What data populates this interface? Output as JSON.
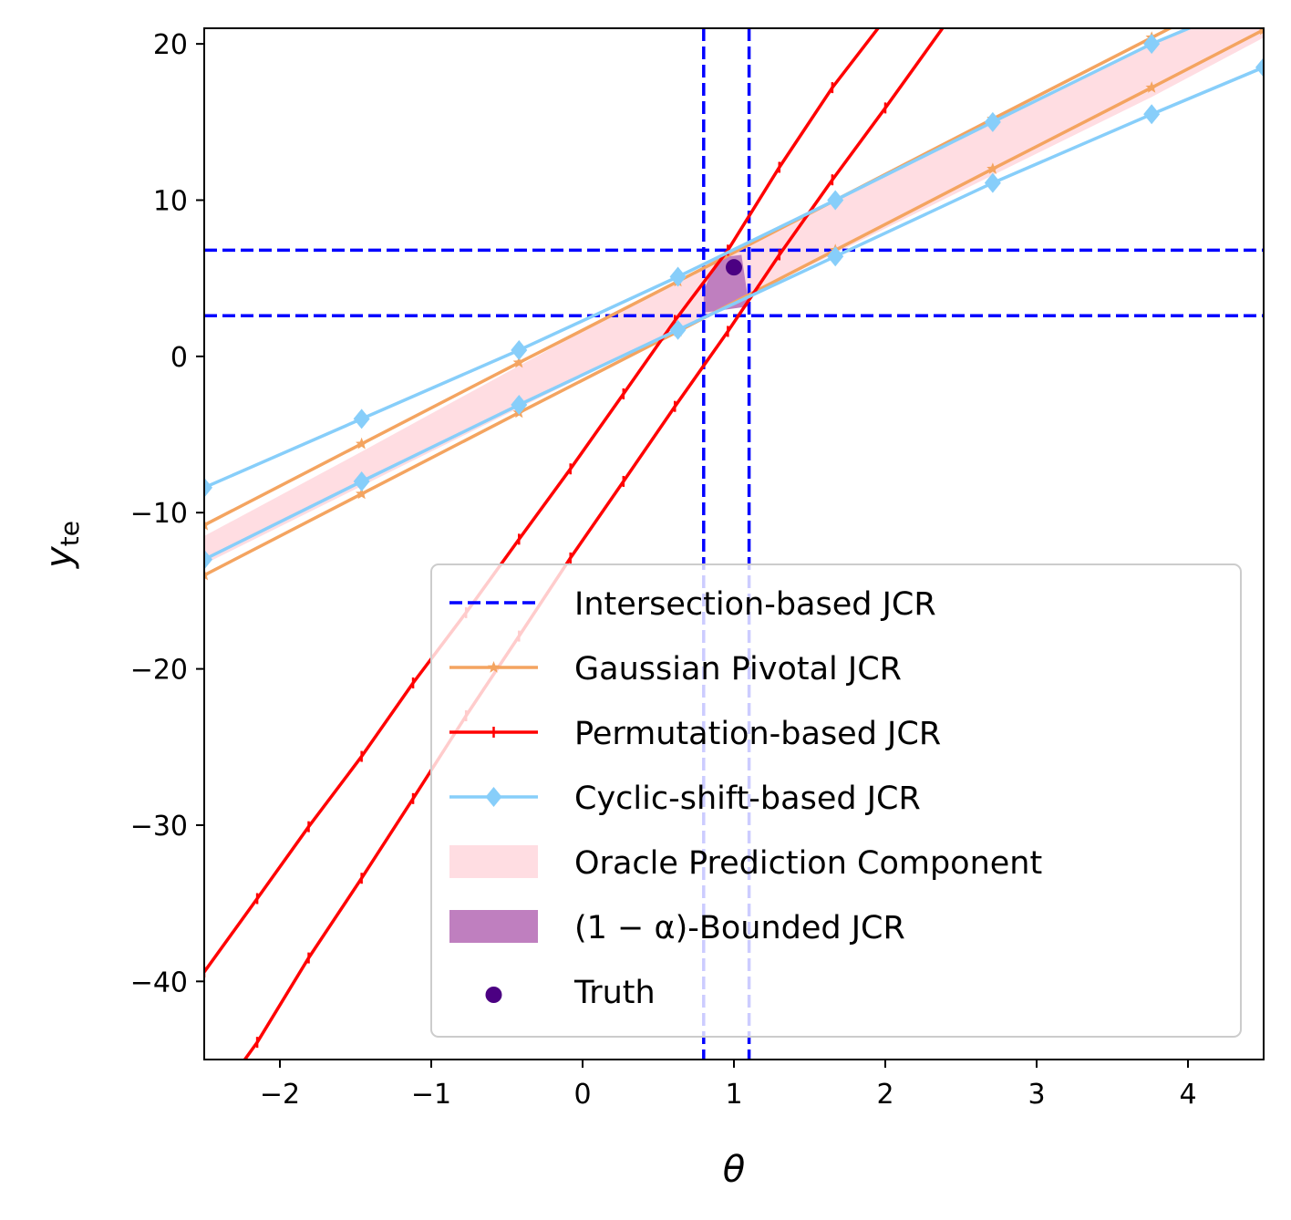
{
  "chart_data": {
    "type": "line",
    "xlabel": "θ",
    "ylabel_main": "y",
    "ylabel_sub": "te",
    "xlim": [
      -2.5,
      4.5
    ],
    "ylim": [
      -45,
      21
    ],
    "x_ticks": [
      {
        "value": -2,
        "label": "−2"
      },
      {
        "value": -1,
        "label": "−1"
      },
      {
        "value": 0,
        "label": "0"
      },
      {
        "value": 1,
        "label": "1"
      },
      {
        "value": 2,
        "label": "2"
      },
      {
        "value": 3,
        "label": "3"
      },
      {
        "value": 4,
        "label": "4"
      }
    ],
    "y_ticks": [
      {
        "value": 20,
        "label": "20"
      },
      {
        "value": 10,
        "label": "10"
      },
      {
        "value": 0,
        "label": "0"
      },
      {
        "value": -10,
        "label": "−10"
      },
      {
        "value": -20,
        "label": "−20"
      },
      {
        "value": -30,
        "label": "−30"
      },
      {
        "value": -40,
        "label": "−40"
      }
    ],
    "grid": false,
    "legend_position": "lower-right",
    "legend": [
      {
        "key": "intersection",
        "label": "Intersection-based JCR"
      },
      {
        "key": "gaussian",
        "label": "Gaussian Pivotal JCR"
      },
      {
        "key": "permutation",
        "label": "Permutation-based JCR"
      },
      {
        "key": "cyclic",
        "label": "Cyclic-shift-based JCR"
      },
      {
        "key": "oracle",
        "label": "Oracle Prediction Component"
      },
      {
        "key": "bounded",
        "label": "(1 − α)-Bounded JCR"
      },
      {
        "key": "truth",
        "label": "Truth"
      }
    ],
    "series": [
      {
        "key": "gaussian",
        "color": "#F4A460",
        "marker": "star",
        "lines": [
          {
            "x": [
              -2.5,
              -1.46,
              -0.42,
              0.63,
              1.67,
              2.71,
              3.76,
              4.5
            ],
            "y": [
              -10.8,
              -5.6,
              -0.4,
              4.8,
              10.0,
              15.2,
              20.4,
              24.1
            ]
          },
          {
            "x": [
              -2.5,
              -1.46,
              -0.42,
              0.63,
              1.67,
              2.71,
              3.76,
              4.5
            ],
            "y": [
              -14.0,
              -8.8,
              -3.6,
              1.6,
              6.8,
              12.0,
              17.2,
              20.9
            ]
          }
        ]
      },
      {
        "key": "permutation",
        "color": "#FF0000",
        "marker": "tick",
        "lines": [
          {
            "x": [
              -2.5,
              -2.15,
              -1.81,
              -1.46,
              -1.12,
              -0.77,
              -0.42,
              -0.08,
              0.27,
              0.61,
              0.96,
              1.3,
              1.65,
              2.0,
              2.4
            ],
            "y": [
              -39.4,
              -34.7,
              -30.1,
              -25.6,
              -20.9,
              -16.4,
              -11.7,
              -7.2,
              -2.4,
              2.3,
              6.8,
              12.1,
              17.2,
              21.6,
              27.0
            ]
          },
          {
            "x": [
              -2.5,
              -2.15,
              -1.81,
              -1.46,
              -1.12,
              -0.77,
              -0.42,
              -0.08,
              0.27,
              0.61,
              0.96,
              1.3,
              1.65,
              2.0,
              2.4
            ],
            "y": [
              -48.6,
              -43.9,
              -38.5,
              -33.4,
              -28.3,
              -23.0,
              -17.9,
              -12.9,
              -8.0,
              -3.2,
              1.6,
              6.5,
              11.3,
              15.9,
              21.3
            ]
          }
        ]
      },
      {
        "key": "cyclic",
        "color": "#87CEFA",
        "marker": "diamond",
        "lines": [
          {
            "x": [
              -2.5,
              -1.46,
              -0.42,
              0.63,
              1.67,
              2.71,
              3.76,
              4.5
            ],
            "y": [
              -8.4,
              -4.0,
              0.4,
              5.1,
              10.0,
              15.0,
              20.0,
              23.0
            ]
          },
          {
            "x": [
              -2.5,
              -1.46,
              -0.42,
              0.63,
              1.67,
              2.71,
              3.76,
              4.5
            ],
            "y": [
              -13.0,
              -8.0,
              -3.1,
              1.7,
              6.4,
              11.1,
              15.5,
              18.5
            ]
          }
        ]
      }
    ],
    "intersection": {
      "color": "#0000FF",
      "x_bounds": [
        0.8,
        1.1
      ],
      "y_bounds": [
        2.6,
        6.8
      ]
    },
    "oracle": {
      "color": "#FFDDE2",
      "x": [
        -2.5,
        -1.46,
        -0.42,
        0.63,
        1.67,
        2.71,
        3.76,
        4.5
      ],
      "upper": [
        -11.5,
        -6.1,
        -0.6,
        4.9,
        9.9,
        15.0,
        20.0,
        23.5
      ],
      "lower": [
        -13.3,
        -8.3,
        -3.3,
        1.7,
        6.6,
        11.6,
        16.6,
        20.4
      ]
    },
    "bounded": {
      "color": "#BF7FBF",
      "points": [
        [
          0.8,
          4.2
        ],
        [
          0.89,
          6.3
        ],
        [
          1.05,
          6.5
        ],
        [
          1.1,
          3.2
        ],
        [
          0.8,
          2.8
        ]
      ]
    },
    "truth": {
      "color": "#4B0082",
      "x": 1.0,
      "y": 5.7
    }
  }
}
